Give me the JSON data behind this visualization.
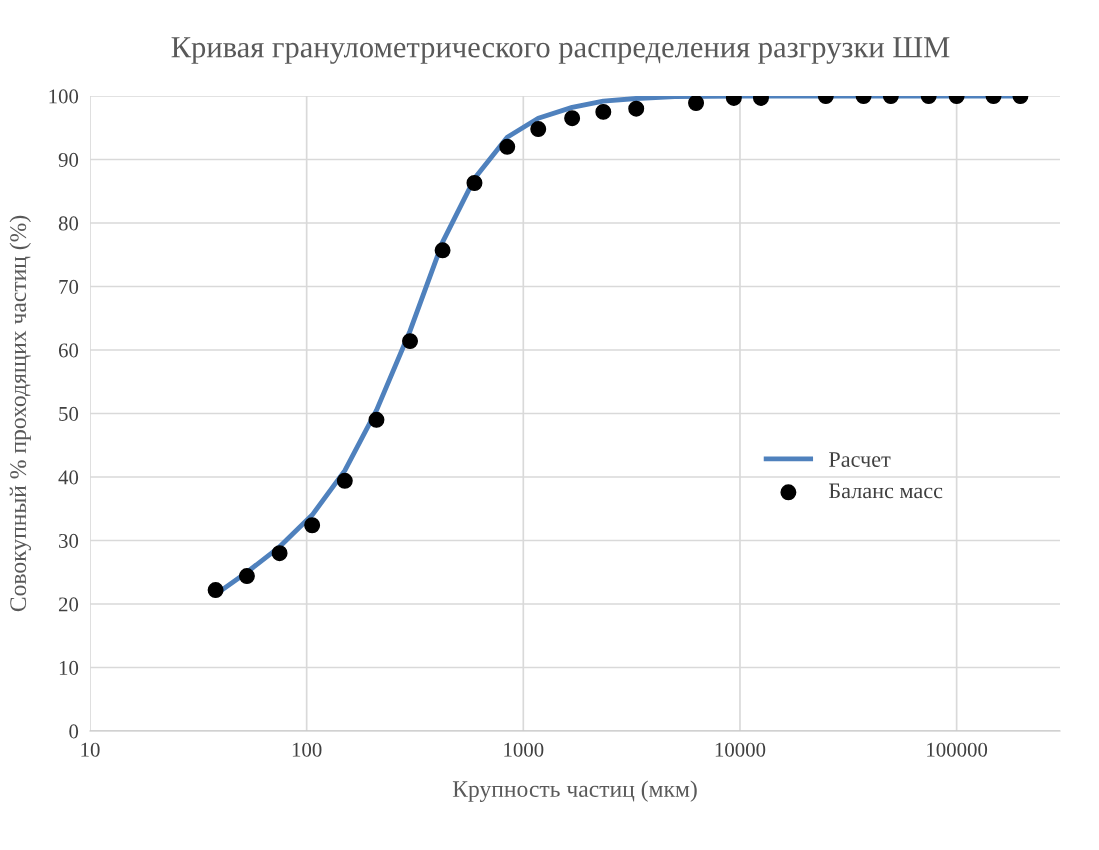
{
  "chart_data": {
    "type": "line",
    "title": "Кривая гранулометрического распределения разгрузки ШМ",
    "xlabel": "Крупность частиц (мкм)",
    "ylabel": "Совокупный % проходящих частиц (%)",
    "log": "x",
    "xlim": [
      10,
      300000
    ],
    "xticks": [
      10,
      100,
      1000,
      10000,
      100000
    ],
    "ylim": [
      0,
      100
    ],
    "yticks": [
      0,
      10,
      20,
      30,
      40,
      50,
      60,
      70,
      80,
      90,
      100
    ],
    "grid": true,
    "legend": "right",
    "series": [
      {
        "name": "Расчет",
        "color": "#4f81bd",
        "marker": "none",
        "line_style": "solid",
        "x": [
          38,
          53,
          75,
          106,
          150,
          210,
          300,
          424,
          595,
          843,
          1172,
          1680,
          2340,
          3320,
          5000,
          10000,
          200000
        ],
        "values": [
          21.5,
          25,
          29,
          34,
          41,
          50.5,
          63,
          77,
          87,
          93.5,
          96.5,
          98.2,
          99.2,
          99.6,
          99.9,
          100,
          100
        ]
      },
      {
        "name": "Баланс масс",
        "type": "scatter",
        "color": "#000000",
        "marker": "circle",
        "x": [
          38,
          53,
          75,
          106,
          150,
          210,
          300,
          424,
          595,
          843,
          1172,
          1680,
          2340,
          3320,
          6270,
          9370,
          12500,
          24900,
          37200,
          49700,
          74300,
          100000,
          148000,
          197000
        ],
        "values": [
          22.2,
          24.4,
          28.0,
          32.4,
          39.4,
          49.0,
          61.4,
          75.7,
          86.3,
          92.0,
          94.8,
          96.5,
          97.5,
          98.0,
          98.9,
          99.7,
          99.7,
          100,
          100,
          100,
          100,
          100,
          100,
          100
        ]
      }
    ]
  }
}
